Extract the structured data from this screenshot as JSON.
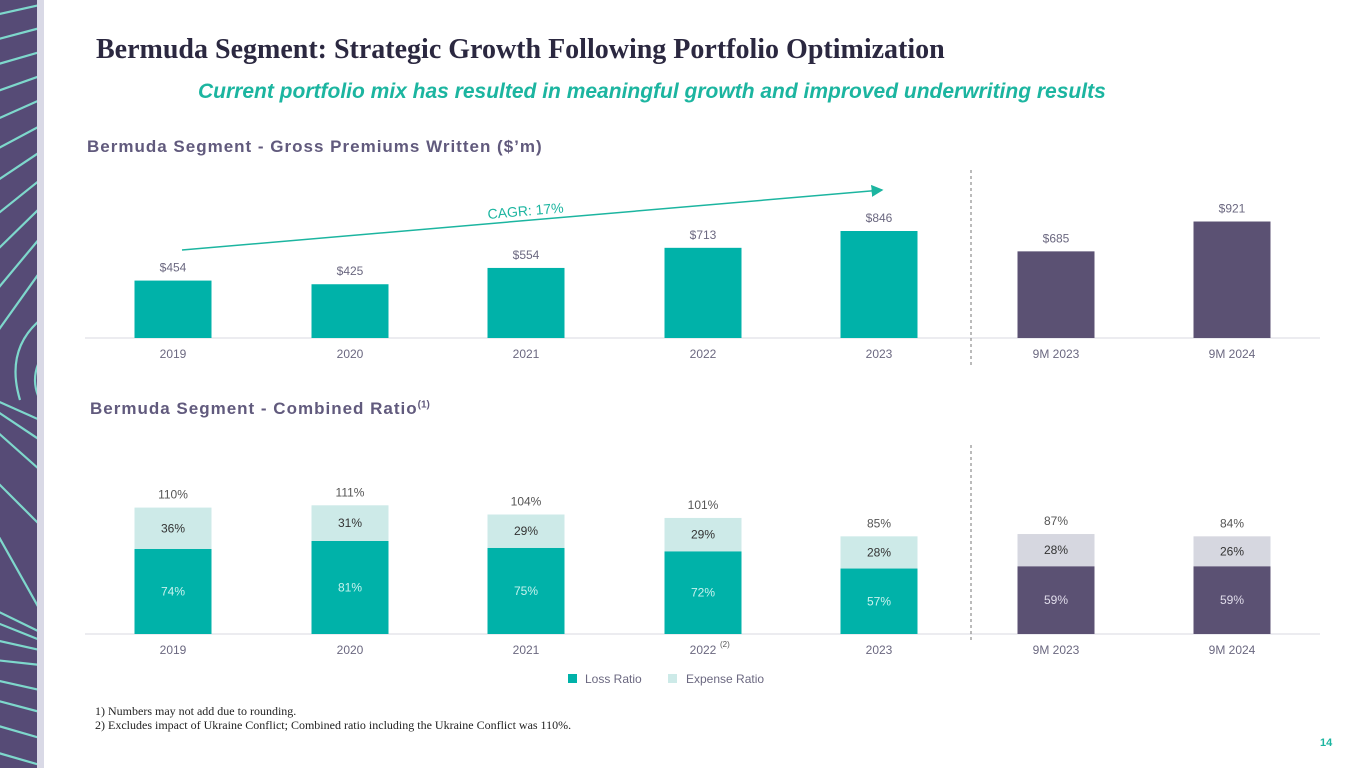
{
  "slide": {
    "title": "Bermuda Segment: Strategic Growth Following Portfolio Optimization",
    "subtitle": "Current portfolio mix has resulted in meaningful growth and improved underwriting results",
    "page_number": "14",
    "footnotes": [
      "1)  Numbers may not add due to rounding.",
      "2) Excludes impact of Ukraine Conflict; Combined ratio including the Ukraine Conflict was 110%."
    ]
  },
  "colors": {
    "teal": "#00b2a9",
    "purple": "#5b5173",
    "light_teal": "#cdeae8",
    "light_purple": "#d6d7e0",
    "label_gray": "#6b6880",
    "accent": "#1cb5a0"
  },
  "chart_data": [
    {
      "type": "bar",
      "title": "Bermuda Segment - Gross Premiums Written ($’m)",
      "categories": [
        "2019",
        "2020",
        "2021",
        "2022",
        "2023",
        "9M 2023",
        "9M 2024"
      ],
      "values": [
        454,
        425,
        554,
        713,
        846,
        685,
        921
      ],
      "labels": [
        "$454",
        "$425",
        "$554",
        "$713",
        "$846",
        "$685",
        "$921"
      ],
      "groups": [
        "annual",
        "annual",
        "annual",
        "annual",
        "annual",
        "nine_month",
        "nine_month"
      ],
      "annotation": "CAGR: 17%",
      "xlabel": "",
      "ylabel": "",
      "ylim": [
        0,
        1000
      ],
      "grid": false
    },
    {
      "type": "bar",
      "stacked": true,
      "title": "Bermuda Segment - Combined Ratio",
      "title_superscript": "(1)",
      "categories": [
        "2019",
        "2020",
        "2021",
        "2022",
        "2023",
        "9M 2023",
        "9M 2024"
      ],
      "category_superscripts": [
        "",
        "",
        "",
        "(2)",
        "",
        "",
        ""
      ],
      "groups": [
        "annual",
        "annual",
        "annual",
        "annual",
        "annual",
        "nine_month",
        "nine_month"
      ],
      "series": [
        {
          "name": "Loss Ratio",
          "values": [
            74,
            81,
            75,
            72,
            57,
            59,
            59
          ],
          "labels": [
            "74%",
            "81%",
            "75%",
            "72%",
            "57%",
            "59%",
            "59%"
          ]
        },
        {
          "name": "Expense Ratio",
          "values": [
            36,
            31,
            29,
            29,
            28,
            28,
            26
          ],
          "labels": [
            "36%",
            "31%",
            "29%",
            "29%",
            "28%",
            "28%",
            "26%"
          ]
        }
      ],
      "totals": [
        110,
        111,
        104,
        101,
        85,
        87,
        84
      ],
      "total_labels": [
        "110%",
        "111%",
        "104%",
        "101%",
        "85%",
        "87%",
        "84%"
      ],
      "legend": [
        "Loss Ratio",
        "Expense Ratio"
      ],
      "legend_position": "bottom",
      "xlabel": "",
      "ylabel": "",
      "ylim": [
        0,
        120
      ],
      "grid": false
    }
  ]
}
